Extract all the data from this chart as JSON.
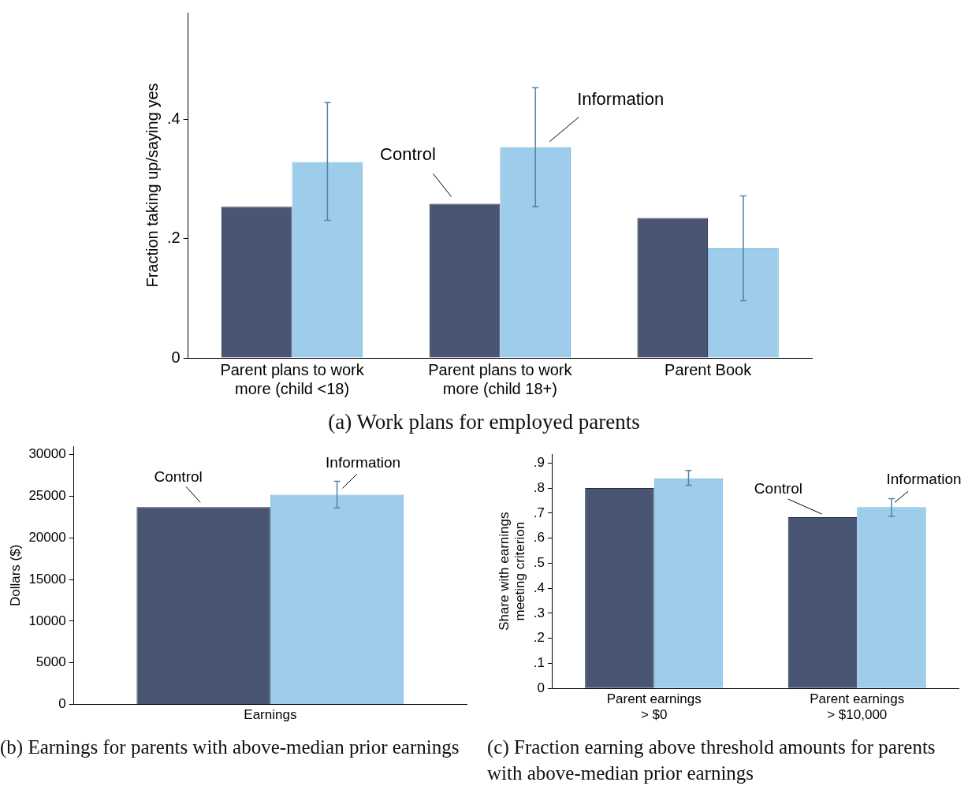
{
  "chart_data": [
    {
      "type": "bar",
      "title": "(a) Work plans for employed parents",
      "ylabel": "Fraction taking up/saying yes",
      "categories": [
        "Parent plans to work more (child <18)",
        "Parent plans to work more (child 18+)",
        "Parent Book"
      ],
      "series": [
        {
          "color": "#4a5574",
          "values": [
            0.254,
            0.259,
            0.235
          ]
        },
        {
          "color": "#9dcdeb",
          "values": [
            0.329,
            0.354,
            0.184
          ],
          "errors": [
            [
              0.231,
              0.429
            ],
            [
              0.254,
              0.454
            ],
            [
              0.096,
              0.272
            ]
          ]
        }
      ],
      "ylim": [
        0,
        0.58
      ],
      "yticks": [
        0,
        {
          "value": 0.2,
          "label": ".2"
        },
        {
          "value": 0.4,
          "label": ".4"
        }
      ],
      "grid": false,
      "legend": false,
      "annotations": [
        "Control",
        "Information"
      ]
    },
    {
      "type": "bar",
      "title": "(b) Earnings for parents with above-median prior earnings",
      "ylabel": "Dollars ($)",
      "categories": [
        "Earnings"
      ],
      "series": [
        {
          "color": "#4a5574",
          "values": [
            23700
          ]
        },
        {
          "color": "#9dcdeb",
          "values": [
            25200
          ],
          "errors": [
            [
              23600,
              26800
            ]
          ]
        }
      ],
      "ylim": [
        0,
        31000
      ],
      "yticks": [
        0,
        5000,
        10000,
        15000,
        20000,
        25000,
        30000
      ],
      "grid": false,
      "legend": false,
      "annotations": [
        "Control",
        "Information"
      ]
    },
    {
      "type": "bar",
      "title": "(c) Fraction earning above threshold amounts for parents with above-median prior earnings",
      "ylabel": "Share with earnings meeting criterion",
      "categories": [
        "Parent earnings > $0",
        "Parent earnings > $10,000"
      ],
      "series": [
        {
          "color": "#4a5574",
          "values": [
            0.8,
            0.684
          ]
        },
        {
          "color": "#9dcdeb",
          "values": [
            0.839,
            0.724
          ],
          "errors": [
            [
              0.811,
              0.87
            ],
            [
              0.687,
              0.758
            ]
          ]
        }
      ],
      "ylim": [
        0,
        0.935
      ],
      "yticks": [
        0,
        {
          "value": 0.1,
          "label": ".1"
        },
        {
          "value": 0.2,
          "label": ".2"
        },
        {
          "value": 0.3,
          "label": ".3"
        },
        {
          "value": 0.4,
          "label": ".4"
        },
        {
          "value": 0.5,
          "label": ".5"
        },
        {
          "value": 0.6,
          "label": ".6"
        },
        {
          "value": 0.7,
          "label": ".7"
        },
        {
          "value": 0.8,
          "label": ".8"
        },
        {
          "value": 0.9,
          "label": ".9"
        }
      ],
      "grid": false,
      "legend": false,
      "annotations": [
        "Control",
        "Information"
      ]
    }
  ]
}
